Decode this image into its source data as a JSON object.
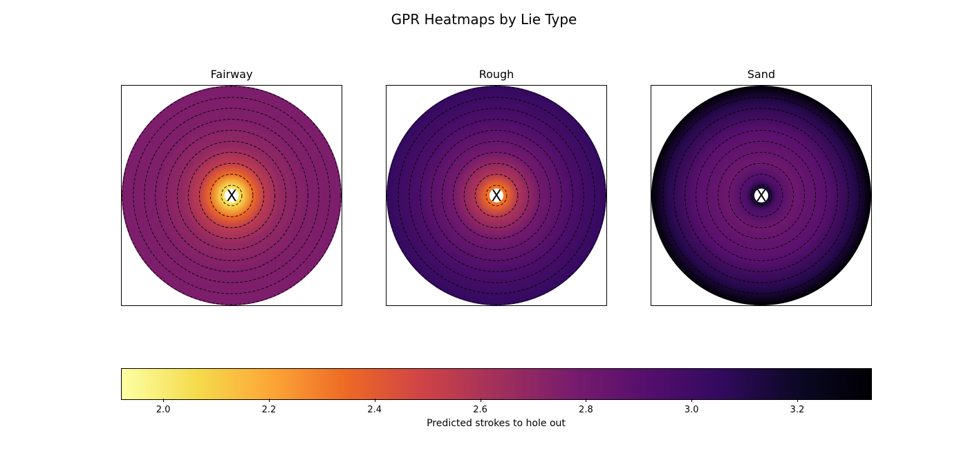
{
  "chart_data": {
    "type": "heatmap",
    "title": "GPR Heatmaps by Lie Type",
    "colormap": "inferno",
    "colorbar": {
      "label": "Predicted strokes to hole out",
      "range": [
        1.92,
        3.34
      ],
      "ticks": [
        "2.0",
        "2.2",
        "2.4",
        "2.6",
        "2.8",
        "3.0",
        "3.2"
      ],
      "orientation": "horizontal",
      "placement": "bottom"
    },
    "panels": [
      {
        "title": "Fairway",
        "marker": "X",
        "contour_rings": 10,
        "radial_profile": [
          {
            "r": 0.0,
            "value": 1.92
          },
          {
            "r": 0.1,
            "value": 2.08
          },
          {
            "r": 0.2,
            "value": 2.35
          },
          {
            "r": 0.3,
            "value": 2.55
          },
          {
            "r": 0.45,
            "value": 2.68
          },
          {
            "r": 0.7,
            "value": 2.75
          },
          {
            "r": 1.0,
            "value": 2.76
          }
        ]
      },
      {
        "title": "Rough",
        "marker": "X",
        "contour_rings": 10,
        "radial_profile": [
          {
            "r": 0.0,
            "value": 2.22
          },
          {
            "r": 0.1,
            "value": 2.35
          },
          {
            "r": 0.2,
            "value": 2.6
          },
          {
            "r": 0.4,
            "value": 2.8
          },
          {
            "r": 0.7,
            "value": 2.95
          },
          {
            "r": 1.0,
            "value": 3.05
          }
        ]
      },
      {
        "title": "Sand",
        "marker": "X",
        "contour_rings": 10,
        "radial_profile": [
          {
            "r": 0.0,
            "value": 3.2
          },
          {
            "r": 0.06,
            "value": 3.2
          },
          {
            "r": 0.14,
            "value": 2.95
          },
          {
            "r": 0.3,
            "value": 2.82
          },
          {
            "r": 0.6,
            "value": 2.9
          },
          {
            "r": 0.85,
            "value": 3.1
          },
          {
            "r": 1.0,
            "value": 3.34
          }
        ]
      }
    ]
  }
}
